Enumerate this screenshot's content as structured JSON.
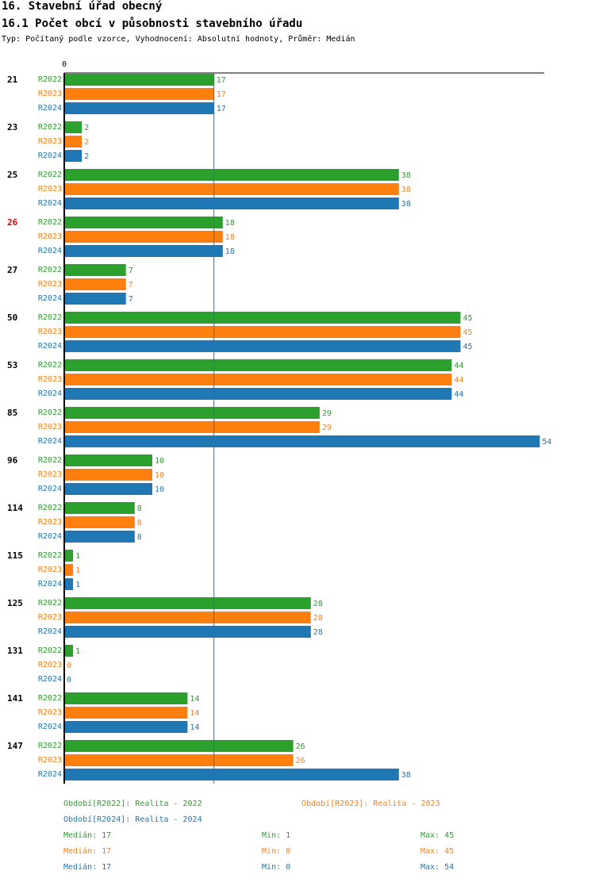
{
  "header": {
    "title": "16. Stavební úřad obecný",
    "subtitle": "16.1 Počet obcí v působnosti stavebního úřadu",
    "type_line": "Typ: Počítaný podle vzorce, Vyhodnocení: Absolutní hodnoty, Průměr: Medián"
  },
  "colors": {
    "R2022": "#2ca02c",
    "R2023": "#ff7f0e",
    "R2024": "#1f77b4",
    "highlight": "#cc0000"
  },
  "chart_data": {
    "type": "bar",
    "orientation": "horizontal",
    "categories": [
      "21",
      "23",
      "25",
      "26",
      "27",
      "50",
      "53",
      "85",
      "96",
      "114",
      "115",
      "125",
      "131",
      "141",
      "147"
    ],
    "highlighted_category": "26",
    "series": [
      {
        "name": "R2022",
        "values": [
          17,
          2,
          38,
          18,
          7,
          45,
          44,
          29,
          10,
          8,
          1,
          28,
          1,
          14,
          26
        ]
      },
      {
        "name": "R2023",
        "values": [
          17,
          2,
          38,
          18,
          7,
          45,
          44,
          29,
          10,
          8,
          1,
          28,
          0,
          14,
          26
        ]
      },
      {
        "name": "R2024",
        "values": [
          17,
          2,
          38,
          18,
          7,
          45,
          44,
          54,
          10,
          8,
          1,
          28,
          0,
          14,
          38
        ]
      }
    ],
    "x_tick_label": "0",
    "xlim": [
      0,
      54
    ],
    "median_line": 17
  },
  "legend": {
    "r2022": "Období[R2022]: Realita - 2022",
    "r2023": "Období[R2023]: Realita - 2023",
    "r2024": "Období[R2024]: Realita - 2024"
  },
  "stats": [
    {
      "median": "Medián: 17",
      "min": "Min: 1",
      "max": "Max: 45"
    },
    {
      "median": "Medián: 17",
      "min": "Min: 0",
      "max": "Max: 45"
    },
    {
      "median": "Medián: 17",
      "min": "Min: 0",
      "max": "Max: 54"
    }
  ]
}
